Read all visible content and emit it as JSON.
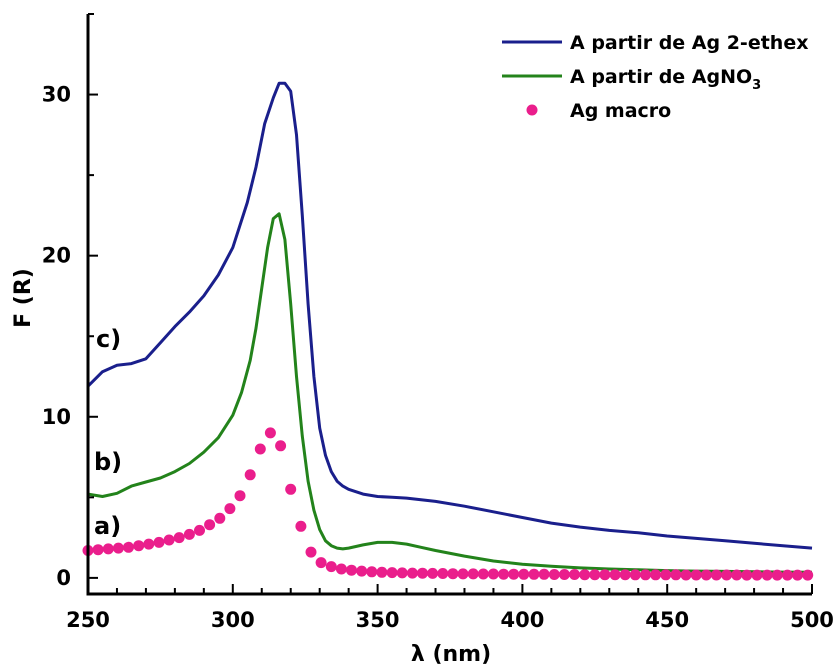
{
  "chart_data": {
    "type": "line",
    "title": "",
    "xlabel": "λ (nm)",
    "ylabel": "F (R)",
    "xlim": [
      250,
      500
    ],
    "ylim": [
      -1,
      35
    ],
    "x_ticks": [
      250,
      300,
      350,
      400,
      450,
      500
    ],
    "y_ticks": [
      0,
      10,
      20,
      30
    ],
    "x_tick_labels": [
      "250",
      "300",
      "350",
      "400",
      "450",
      "500"
    ],
    "y_tick_labels": [
      "0",
      "10",
      "20",
      "30"
    ],
    "grid": false,
    "legend_position": "top-right",
    "series": [
      {
        "name": "A partir de Ag 2-ethex",
        "legend_text": "A partir de Ag 2-ethex",
        "color": "#1a1f8c",
        "style": "line",
        "curve_label": "c)",
        "x": [
          250,
          255,
          260,
          265,
          270,
          275,
          280,
          285,
          290,
          295,
          300,
          305,
          308,
          311,
          314,
          316,
          318,
          320,
          322,
          324,
          326,
          328,
          330,
          332,
          334,
          336,
          338,
          340,
          345,
          350,
          355,
          360,
          370,
          380,
          390,
          400,
          410,
          420,
          430,
          440,
          450,
          460,
          470,
          480,
          490,
          500
        ],
        "y": [
          11.9,
          12.8,
          13.2,
          13.3,
          13.6,
          14.6,
          15.6,
          16.5,
          17.5,
          18.8,
          20.5,
          23.3,
          25.5,
          28.2,
          29.8,
          30.7,
          30.7,
          30.2,
          27.5,
          22.5,
          17.0,
          12.5,
          9.3,
          7.6,
          6.6,
          6.0,
          5.7,
          5.5,
          5.2,
          5.05,
          5.0,
          4.95,
          4.75,
          4.45,
          4.1,
          3.75,
          3.4,
          3.15,
          2.95,
          2.8,
          2.6,
          2.45,
          2.3,
          2.15,
          2.0,
          1.85
        ]
      },
      {
        "name": "A partir de AgNO3",
        "legend_text": "A partir de AgNO",
        "legend_subscript": "3",
        "color": "#23831b",
        "style": "line",
        "curve_label": "b)",
        "x": [
          250,
          255,
          260,
          265,
          270,
          275,
          280,
          285,
          290,
          295,
          300,
          303,
          306,
          308,
          310,
          312,
          314,
          316,
          318,
          320,
          322,
          324,
          326,
          328,
          330,
          332,
          334,
          336,
          338,
          340,
          345,
          350,
          355,
          360,
          365,
          370,
          380,
          390,
          400,
          410,
          420,
          430,
          440,
          450,
          460,
          470,
          480,
          490,
          500
        ],
        "y": [
          5.2,
          5.05,
          5.25,
          5.7,
          5.95,
          6.2,
          6.6,
          7.1,
          7.8,
          8.7,
          10.1,
          11.5,
          13.5,
          15.5,
          18.0,
          20.5,
          22.3,
          22.6,
          21.0,
          17.0,
          12.5,
          8.8,
          6.0,
          4.2,
          3.0,
          2.3,
          2.0,
          1.85,
          1.8,
          1.85,
          2.05,
          2.2,
          2.2,
          2.1,
          1.9,
          1.7,
          1.35,
          1.05,
          0.85,
          0.72,
          0.62,
          0.55,
          0.5,
          0.45,
          0.42,
          0.4,
          0.38,
          0.36,
          0.35
        ]
      },
      {
        "name": "Ag macro",
        "legend_text": "Ag macro",
        "color": "#ea1e8c",
        "style": "markers",
        "curve_label": "a)",
        "x": [
          250,
          253.5,
          257,
          260.5,
          264,
          267.5,
          271,
          274.5,
          278,
          281.5,
          285,
          288.5,
          292,
          295.5,
          299,
          302.5,
          306,
          309.5,
          313,
          316.5,
          320,
          323.5,
          327,
          330.5,
          334,
          337.5,
          341,
          344.5,
          348,
          351.5,
          355,
          358.5,
          362,
          365.5,
          369,
          372.5,
          376,
          379.5,
          383,
          386.5,
          390,
          393.5,
          397,
          400.5,
          404,
          407.5,
          411,
          414.5,
          418,
          421.5,
          425,
          428.5,
          432,
          435.5,
          439,
          442.5,
          446,
          449.5,
          453,
          456.5,
          460,
          463.5,
          467,
          470.5,
          474,
          477.5,
          481,
          484.5,
          488,
          491.5,
          495,
          498.5
        ],
        "y": [
          1.7,
          1.75,
          1.8,
          1.85,
          1.9,
          2.0,
          2.1,
          2.2,
          2.35,
          2.5,
          2.7,
          2.95,
          3.3,
          3.7,
          4.3,
          5.1,
          6.4,
          8.0,
          9.0,
          8.2,
          5.5,
          3.2,
          1.6,
          0.95,
          0.7,
          0.55,
          0.48,
          0.42,
          0.38,
          0.35,
          0.33,
          0.31,
          0.3,
          0.29,
          0.28,
          0.27,
          0.26,
          0.25,
          0.25,
          0.24,
          0.24,
          0.23,
          0.23,
          0.22,
          0.22,
          0.22,
          0.21,
          0.21,
          0.21,
          0.2,
          0.2,
          0.2,
          0.2,
          0.2,
          0.19,
          0.19,
          0.19,
          0.19,
          0.19,
          0.18,
          0.18,
          0.18,
          0.18,
          0.18,
          0.18,
          0.17,
          0.17,
          0.17,
          0.17,
          0.17,
          0.17,
          0.17
        ]
      }
    ]
  }
}
